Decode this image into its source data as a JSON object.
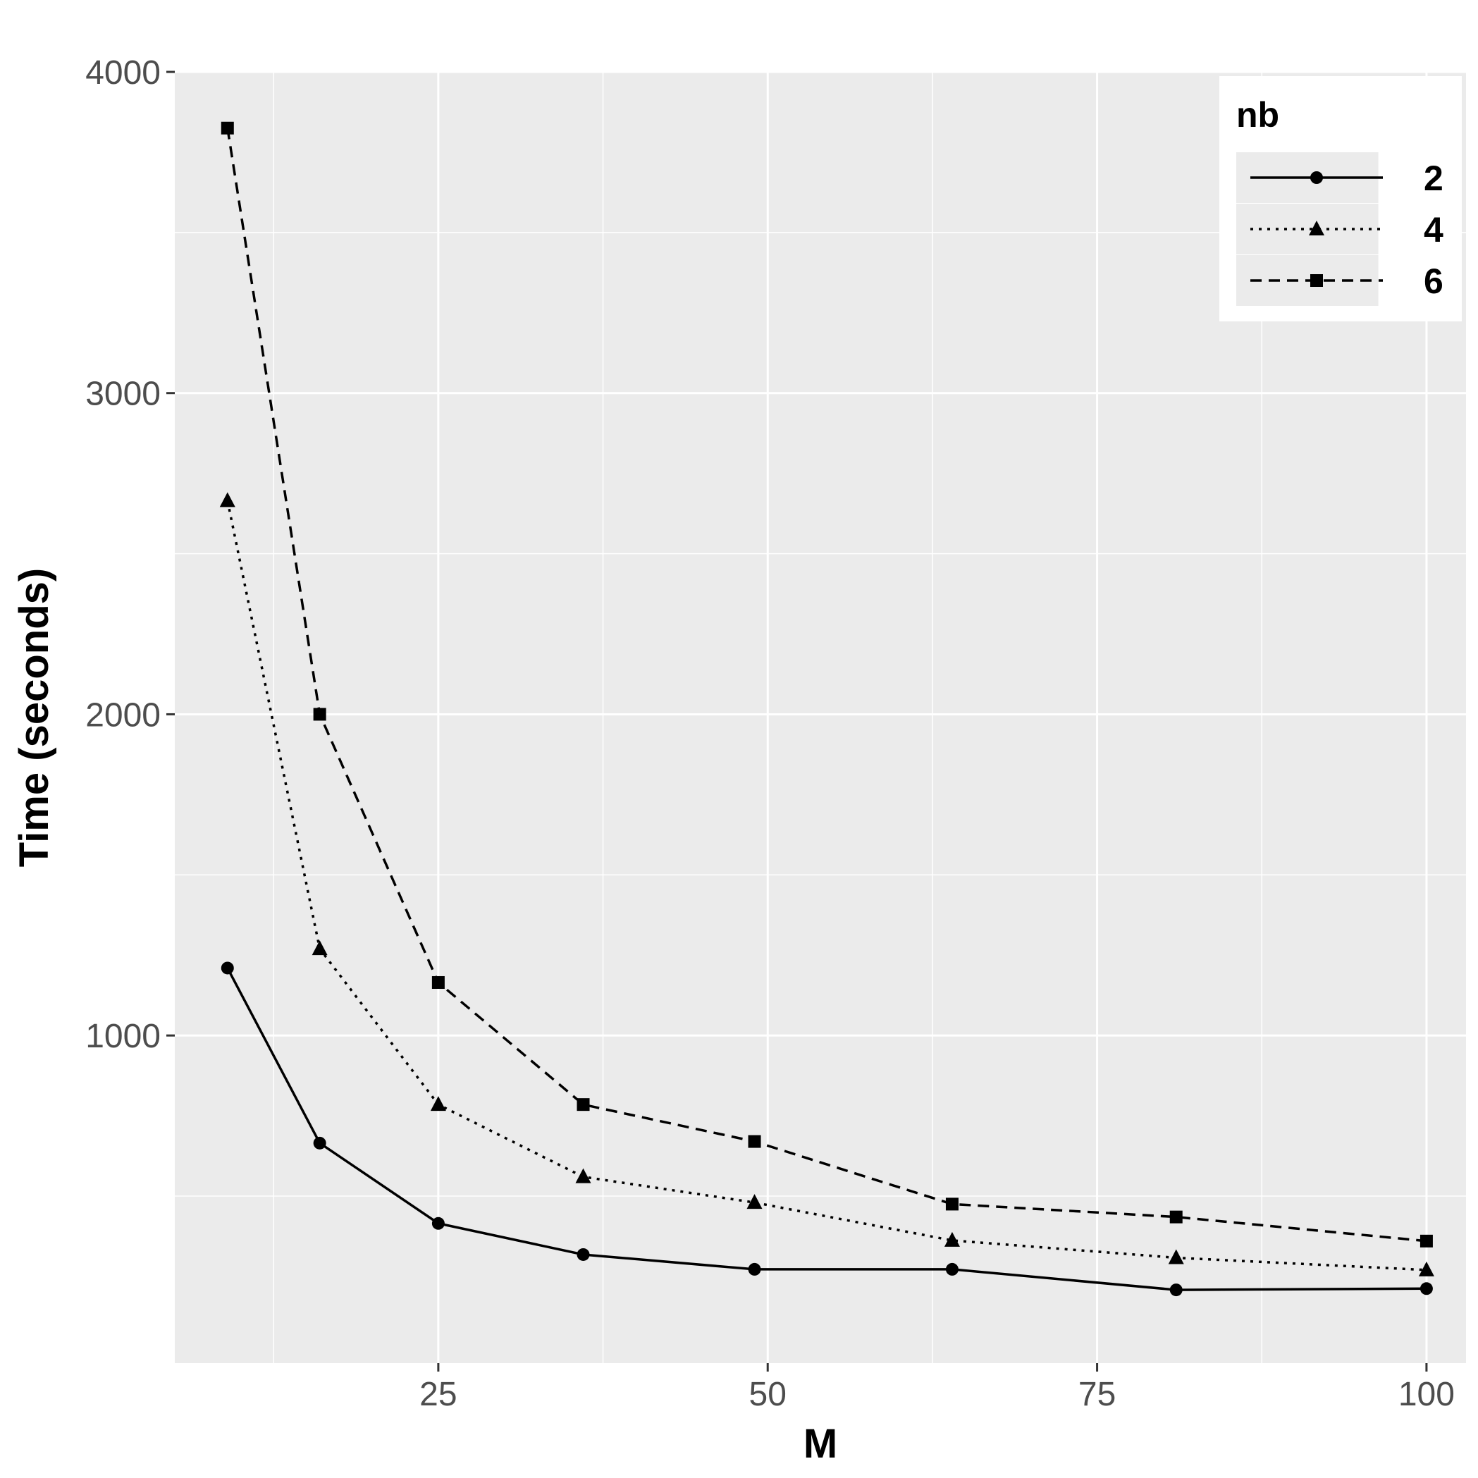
{
  "chart_data": {
    "type": "line",
    "title": "",
    "xlabel": "M",
    "ylabel": "Time (seconds)",
    "xlim": [
      5,
      103
    ],
    "ylim": [
      -20,
      4000
    ],
    "x_ticks": [
      25,
      50,
      75,
      100
    ],
    "y_ticks": [
      1000,
      2000,
      3000,
      4000
    ],
    "grid": true,
    "panel_background": "#ebebeb",
    "legend": {
      "title": "nb",
      "position": "top-right"
    },
    "x": [
      9,
      16,
      25,
      36,
      49,
      64,
      81,
      100
    ],
    "series": [
      {
        "name": "2",
        "marker": "circle",
        "linestyle": "solid",
        "values": [
          1210,
          665,
          415,
          318,
          272,
          272,
          208,
          212
        ]
      },
      {
        "name": "4",
        "marker": "triangle",
        "linestyle": "dotted",
        "values": [
          2665,
          1270,
          785,
          560,
          480,
          362,
          308,
          270
        ]
      },
      {
        "name": "6",
        "marker": "square",
        "linestyle": "dashed",
        "values": [
          3825,
          2000,
          1165,
          785,
          670,
          475,
          435,
          360
        ]
      }
    ]
  }
}
